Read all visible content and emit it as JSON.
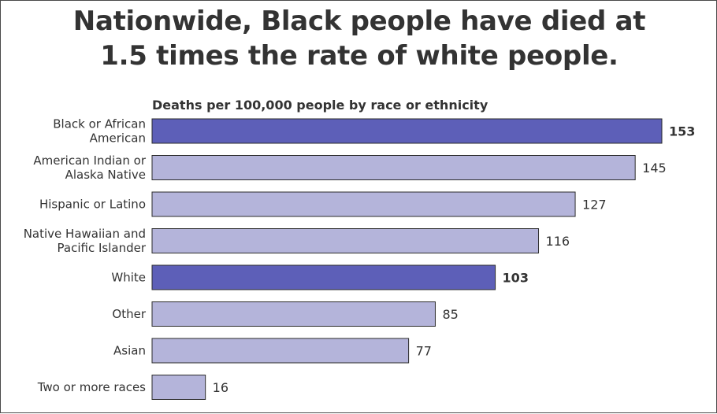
{
  "title": {
    "line1": "Nationwide, Black people have died at",
    "line2": "1.5 times the rate of white people."
  },
  "colors": {
    "highlight": "#5d5fb8",
    "normal": "#b4b4da",
    "bar_border": "#2b2b2b",
    "text": "#333333"
  },
  "chart_data": {
    "type": "bar",
    "orientation": "horizontal",
    "subtitle": "Deaths per 100,000 people by race or ethnicity",
    "categories": [
      [
        "Black or African",
        "American"
      ],
      [
        "American Indian or",
        "Alaska Native"
      ],
      [
        "Hispanic or Latino"
      ],
      [
        "Native Hawaiian and",
        "Pacific Islander"
      ],
      [
        "White"
      ],
      [
        "Other"
      ],
      [
        "Asian"
      ],
      [
        "Two or more races"
      ]
    ],
    "values": [
      153,
      145,
      127,
      116,
      103,
      85,
      77,
      16
    ],
    "value_labels": [
      "153",
      "145",
      "127",
      "116",
      "103",
      "85",
      "77",
      "16"
    ],
    "highlighted": [
      true,
      false,
      false,
      false,
      true,
      false,
      false,
      false
    ],
    "xlim": [
      0,
      153
    ],
    "grid": false,
    "legend": "none"
  }
}
